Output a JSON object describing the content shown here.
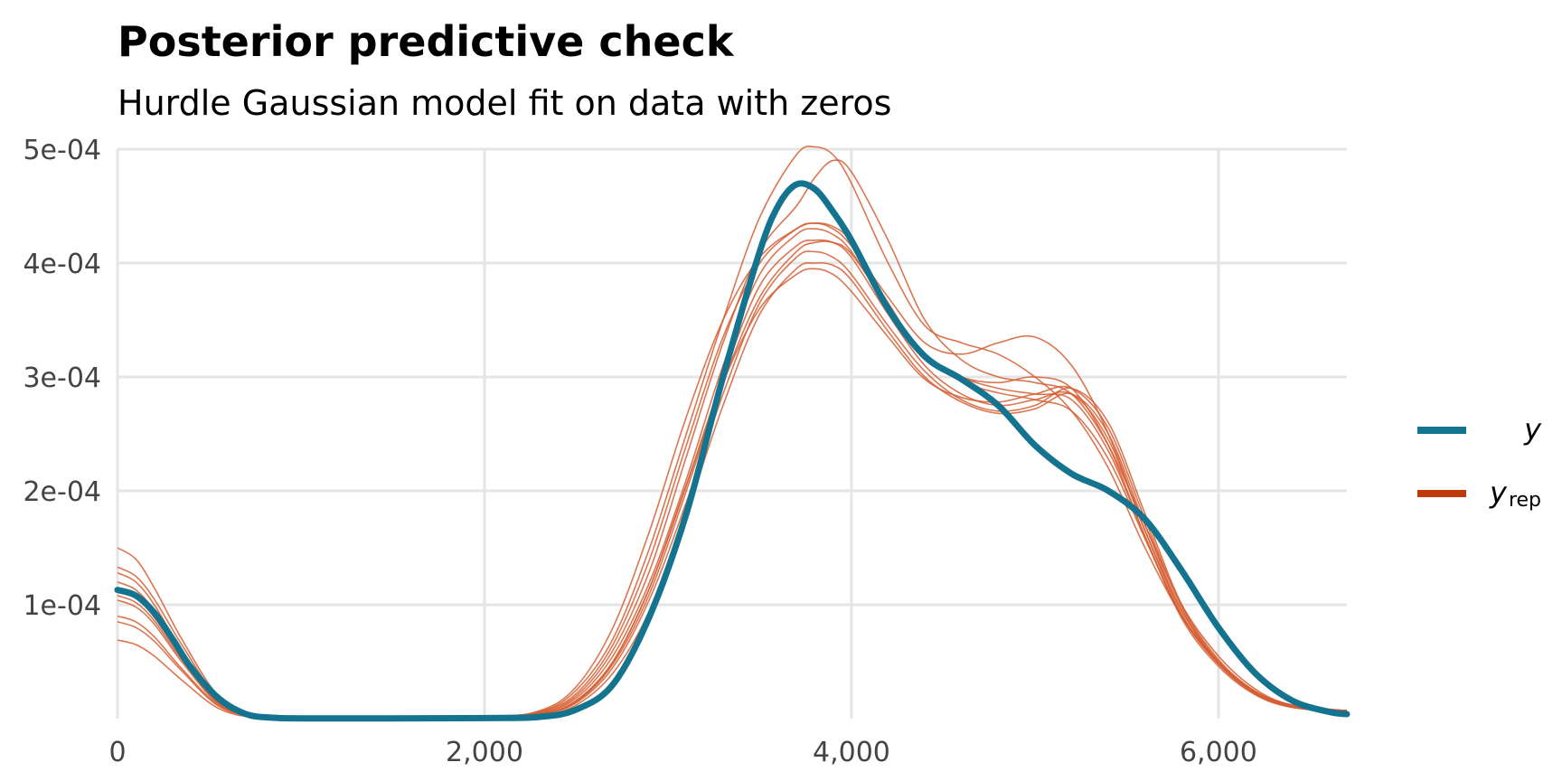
{
  "chart_data": {
    "type": "line",
    "title": "Posterior predictive check",
    "subtitle": "Hurdle Gaussian model fit on data with zeros",
    "xlabel": "",
    "ylabel": "",
    "xlim": [
      0,
      6700
    ],
    "ylim": [
      0,
      0.0005
    ],
    "grid": true,
    "legend_position": "right",
    "x_ticks": [
      {
        "value": 0,
        "label": "0"
      },
      {
        "value": 2000,
        "label": "2,000"
      },
      {
        "value": 4000,
        "label": "4,000"
      },
      {
        "value": 6000,
        "label": "6,000"
      }
    ],
    "y_ticks": [
      {
        "value": 0.0001,
        "label": "1e-04"
      },
      {
        "value": 0.0002,
        "label": "2e-04"
      },
      {
        "value": 0.0003,
        "label": "3e-04"
      },
      {
        "value": 0.0004,
        "label": "4e-04"
      },
      {
        "value": 0.0005,
        "label": "5e-04"
      }
    ],
    "legend": [
      {
        "key": "y",
        "label": "y",
        "sub": "",
        "color": "#14738f"
      },
      {
        "key": "yrep",
        "label": "y",
        "sub": "rep",
        "color": "#c0390b"
      }
    ],
    "series": [
      {
        "name": "y",
        "role": "observed",
        "color": "#14738f",
        "x": [
          0,
          100,
          200,
          300,
          400,
          550,
          700,
          850,
          1000,
          1500,
          2000,
          2300,
          2500,
          2700,
          2900,
          3100,
          3300,
          3500,
          3600,
          3700,
          3800,
          3900,
          4000,
          4200,
          4400,
          4600,
          4800,
          5000,
          5200,
          5400,
          5600,
          5800,
          6000,
          6200,
          6400,
          6600,
          6700
        ],
        "y": [
          0.000113,
          0.000108,
          9.3e-05,
          7e-05,
          4.5e-05,
          1.8e-05,
          4e-06,
          8e-07,
          2e-07,
          2e-07,
          5e-07,
          1.5e-06,
          8e-06,
          3e-05,
          9e-05,
          0.00018,
          0.0003,
          0.00041,
          0.00045,
          0.000469,
          0.000465,
          0.000445,
          0.00042,
          0.00036,
          0.000318,
          0.000298,
          0.000275,
          0.00024,
          0.000215,
          0.0002,
          0.000175,
          0.00013,
          8e-05,
          4e-05,
          1.6e-05,
          6e-06,
          4e-06
        ]
      },
      {
        "name": "",
        "role": "replicate",
        "color": "#d55e33",
        "x": [
          0,
          100,
          200,
          350,
          550,
          750,
          1000,
          2000,
          2300,
          2500,
          2700,
          2900,
          3100,
          3300,
          3500,
          3700,
          3800,
          3900,
          4000,
          4200,
          4400,
          4600,
          4800,
          5000,
          5200,
          5400,
          5600,
          5800,
          6000,
          6200,
          6400,
          6700
        ],
        "y": [
          0.00015,
          0.00014,
          0.000115,
          7e-05,
          2e-05,
          3e-06,
          3e-07,
          2e-06,
          6e-06,
          2.5e-05,
          7e-05,
          0.00015,
          0.00025,
          0.00035,
          0.00044,
          0.000495,
          0.000502,
          0.000495,
          0.00047,
          0.0004,
          0.000345,
          0.00033,
          0.00032,
          0.0003,
          0.00027,
          0.00022,
          0.00015,
          9e-05,
          5e-05,
          2.4e-05,
          1.2e-05,
          7e-06
        ]
      },
      {
        "name": "",
        "role": "replicate",
        "color": "#d55e33",
        "x": [
          0,
          100,
          200,
          350,
          550,
          750,
          1000,
          2000,
          2300,
          2500,
          2700,
          2900,
          3100,
          3300,
          3500,
          3700,
          3800,
          3900,
          4000,
          4200,
          4400,
          4600,
          4800,
          5000,
          5200,
          5400,
          5600,
          5800,
          6000,
          6200,
          6400,
          6700
        ],
        "y": [
          0.000133,
          0.000125,
          0.000105,
          6.5e-05,
          1.8e-05,
          3e-06,
          3e-07,
          1.5e-06,
          5e-06,
          2e-05,
          6e-05,
          0.00013,
          0.00023,
          0.00033,
          0.00041,
          0.00045,
          0.000475,
          0.00049,
          0.00048,
          0.00042,
          0.00035,
          0.000315,
          0.0003,
          0.000295,
          0.000285,
          0.00024,
          0.00017,
          0.0001,
          5.5e-05,
          2.6e-05,
          1.2e-05,
          7e-06
        ]
      },
      {
        "name": "",
        "role": "replicate",
        "color": "#d55e33",
        "x": [
          0,
          100,
          200,
          350,
          550,
          750,
          1000,
          2000,
          2300,
          2500,
          2700,
          2900,
          3100,
          3300,
          3500,
          3700,
          3800,
          3900,
          4000,
          4200,
          4400,
          4600,
          4800,
          5000,
          5200,
          5400,
          5600,
          5800,
          6000,
          6200,
          6400,
          6700
        ],
        "y": [
          0.000128,
          0.00012,
          0.0001,
          6e-05,
          1.6e-05,
          2e-06,
          3e-07,
          2e-06,
          6e-06,
          2.2e-05,
          6.5e-05,
          0.00014,
          0.00024,
          0.000335,
          0.0004,
          0.00043,
          0.000435,
          0.00043,
          0.000415,
          0.00037,
          0.00033,
          0.00032,
          0.00033,
          0.000335,
          0.00031,
          0.00025,
          0.000165,
          9.5e-05,
          5e-05,
          2.4e-05,
          1.1e-05,
          7e-06
        ]
      },
      {
        "name": "",
        "role": "replicate",
        "color": "#d55e33",
        "x": [
          0,
          100,
          200,
          350,
          550,
          750,
          1000,
          2000,
          2300,
          2500,
          2700,
          2900,
          3100,
          3300,
          3500,
          3700,
          3800,
          3900,
          4000,
          4200,
          4400,
          4600,
          4800,
          5000,
          5200,
          5400,
          5600,
          5800,
          6000,
          6200,
          6400,
          6700
        ],
        "y": [
          0.00012,
          0.000113,
          9.5e-05,
          5.7e-05,
          1.5e-05,
          2e-06,
          3e-07,
          1.5e-06,
          5e-06,
          1.8e-05,
          5.5e-05,
          0.00012,
          0.00021,
          0.00031,
          0.00039,
          0.000425,
          0.00043,
          0.000425,
          0.00041,
          0.00036,
          0.00032,
          0.0003,
          0.00029,
          0.000285,
          0.00028,
          0.000235,
          0.00016,
          9e-05,
          5e-05,
          2.4e-05,
          1.1e-05,
          7e-06
        ]
      },
      {
        "name": "",
        "role": "replicate",
        "color": "#d55e33",
        "x": [
          0,
          100,
          200,
          350,
          550,
          750,
          1000,
          2000,
          2300,
          2500,
          2700,
          2900,
          3100,
          3300,
          3500,
          3700,
          3800,
          3900,
          4000,
          4200,
          4400,
          4600,
          4800,
          5000,
          5200,
          5400,
          5600,
          5800,
          6000,
          6200,
          6400,
          6700
        ],
        "y": [
          0.000108,
          0.000102,
          8.6e-05,
          5.2e-05,
          1.4e-05,
          2e-06,
          3e-07,
          1.2e-06,
          4e-06,
          1.5e-05,
          5e-05,
          0.000115,
          0.000205,
          0.0003,
          0.00038,
          0.000415,
          0.00042,
          0.000418,
          0.000405,
          0.000355,
          0.00031,
          0.000285,
          0.000275,
          0.00028,
          0.000285,
          0.000245,
          0.000165,
          9.2e-05,
          4.8e-05,
          2.2e-05,
          1e-05,
          6e-06
        ]
      },
      {
        "name": "",
        "role": "replicate",
        "color": "#d55e33",
        "x": [
          0,
          100,
          200,
          350,
          550,
          750,
          1000,
          2000,
          2300,
          2500,
          2700,
          2900,
          3100,
          3300,
          3500,
          3700,
          3800,
          3900,
          4000,
          4200,
          4400,
          4600,
          4800,
          5000,
          5200,
          5400,
          5600,
          5800,
          6000,
          6200,
          6400,
          6700
        ],
        "y": [
          0.000104,
          9.8e-05,
          8.3e-05,
          5e-05,
          1.3e-05,
          2e-06,
          3e-07,
          1e-06,
          4e-06,
          1.4e-05,
          4.5e-05,
          0.000105,
          0.00019,
          0.000285,
          0.000365,
          0.000405,
          0.00041,
          0.000405,
          0.00039,
          0.000345,
          0.000305,
          0.00028,
          0.00027,
          0.000275,
          0.00029,
          0.00026,
          0.00018,
          0.0001,
          5.2e-05,
          2.4e-05,
          1.1e-05,
          7e-06
        ]
      },
      {
        "name": "",
        "role": "replicate",
        "color": "#d55e33",
        "x": [
          0,
          100,
          200,
          350,
          550,
          750,
          1000,
          2000,
          2300,
          2500,
          2700,
          2900,
          3100,
          3300,
          3500,
          3700,
          3800,
          3900,
          4000,
          4200,
          4400,
          4600,
          4800,
          5000,
          5200,
          5400,
          5600,
          5800,
          6000,
          6200,
          6400,
          6700
        ],
        "y": [
          9e-05,
          8.5e-05,
          7.2e-05,
          4.4e-05,
          1.2e-05,
          2e-06,
          3e-07,
          1e-06,
          3e-06,
          1.2e-05,
          4e-05,
          9.5e-05,
          0.00018,
          0.000275,
          0.000355,
          0.000395,
          0.0004,
          0.000398,
          0.000385,
          0.00034,
          0.0003,
          0.000278,
          0.000268,
          0.000272,
          0.000285,
          0.00025,
          0.00017,
          9.5e-05,
          5e-05,
          2.3e-05,
          1e-05,
          6e-06
        ]
      },
      {
        "name": "",
        "role": "replicate",
        "color": "#d55e33",
        "x": [
          0,
          100,
          200,
          350,
          550,
          750,
          1000,
          2000,
          2300,
          2500,
          2700,
          2900,
          3100,
          3300,
          3500,
          3700,
          3800,
          3900,
          4000,
          4200,
          4400,
          4600,
          4800,
          5000,
          5200,
          5400,
          5600,
          5800,
          6000,
          6200,
          6400,
          6700
        ],
        "y": [
          8.5e-05,
          8e-05,
          6.8e-05,
          4.2e-05,
          1.1e-05,
          2e-06,
          3e-07,
          2e-06,
          7e-06,
          2.8e-05,
          8e-05,
          0.000165,
          0.000265,
          0.00035,
          0.000405,
          0.00043,
          0.000435,
          0.000432,
          0.000418,
          0.000365,
          0.000318,
          0.0003,
          0.000295,
          0.0003,
          0.00029,
          0.00024,
          0.00016,
          8.8e-05,
          4.6e-05,
          2.1e-05,
          1e-05,
          6e-06
        ]
      },
      {
        "name": "",
        "role": "replicate",
        "color": "#d55e33",
        "x": [
          0,
          100,
          200,
          350,
          550,
          750,
          1000,
          2000,
          2300,
          2500,
          2700,
          2900,
          3100,
          3300,
          3500,
          3700,
          3800,
          3900,
          4000,
          4200,
          4400,
          4600,
          4800,
          5000,
          5200,
          5400,
          5600,
          5800,
          6000,
          6200,
          6400,
          6700
        ],
        "y": [
          6.9e-05,
          6.5e-05,
          5.5e-05,
          3.4e-05,
          9e-06,
          1e-06,
          2e-07,
          1e-06,
          4e-06,
          1.6e-05,
          5e-05,
          0.000115,
          0.000205,
          0.000295,
          0.00036,
          0.00039,
          0.000395,
          0.00039,
          0.000375,
          0.000335,
          0.000298,
          0.000282,
          0.000278,
          0.000285,
          0.00029,
          0.000255,
          0.000175,
          9.8e-05,
          5e-05,
          2.3e-05,
          1e-05,
          6e-06
        ]
      },
      {
        "name": "",
        "role": "replicate",
        "color": "#d55e33",
        "x": [
          0,
          100,
          200,
          350,
          550,
          750,
          1000,
          2000,
          2300,
          2500,
          2700,
          2900,
          3100,
          3300,
          3500,
          3700,
          3800,
          3900,
          4000,
          4200,
          4400,
          4600,
          4800,
          5000,
          5200,
          5400,
          5600,
          5800,
          6000,
          6200,
          6400,
          6700
        ],
        "y": [
          0.000112,
          0.000106,
          8.9e-05,
          5.4e-05,
          1.4e-05,
          2e-06,
          3e-07,
          1e-06,
          4e-06,
          1.5e-05,
          4.8e-05,
          0.00011,
          0.0002,
          0.000295,
          0.00037,
          0.00041,
          0.000418,
          0.000418,
          0.000408,
          0.000362,
          0.000318,
          0.000296,
          0.000286,
          0.00028,
          0.00027,
          0.000228,
          0.000158,
          9e-05,
          4.8e-05,
          2.2e-05,
          1e-05,
          6e-06
        ]
      }
    ]
  }
}
